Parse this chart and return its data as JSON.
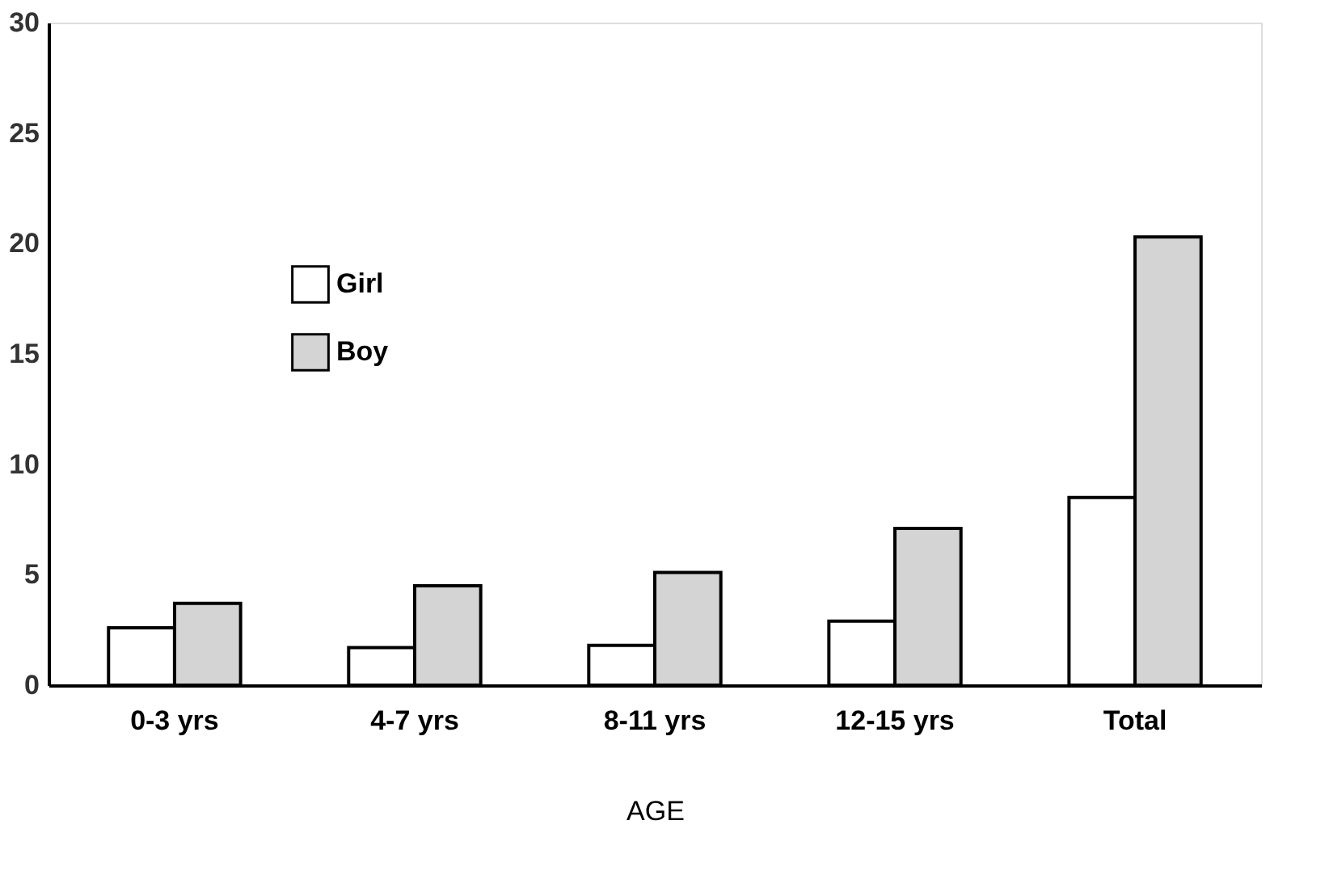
{
  "chart_data": {
    "type": "bar",
    "xlabel": "AGE",
    "categories": [
      "0-3 yrs",
      "4-7 yrs",
      "8-11 yrs",
      "12-15 yrs",
      "Total"
    ],
    "series": [
      {
        "name": "Girl",
        "color": "#ffffff",
        "values": [
          2.6,
          1.7,
          1.8,
          2.9,
          8.5
        ]
      },
      {
        "name": "Boy",
        "color": "#d4d4d4",
        "values": [
          3.7,
          4.5,
          5.1,
          7.1,
          20.3
        ]
      }
    ],
    "ylim": [
      0,
      30
    ],
    "yticks": [
      0,
      5,
      10,
      15,
      20,
      25,
      30
    ],
    "grid": false,
    "legend": "top left"
  }
}
